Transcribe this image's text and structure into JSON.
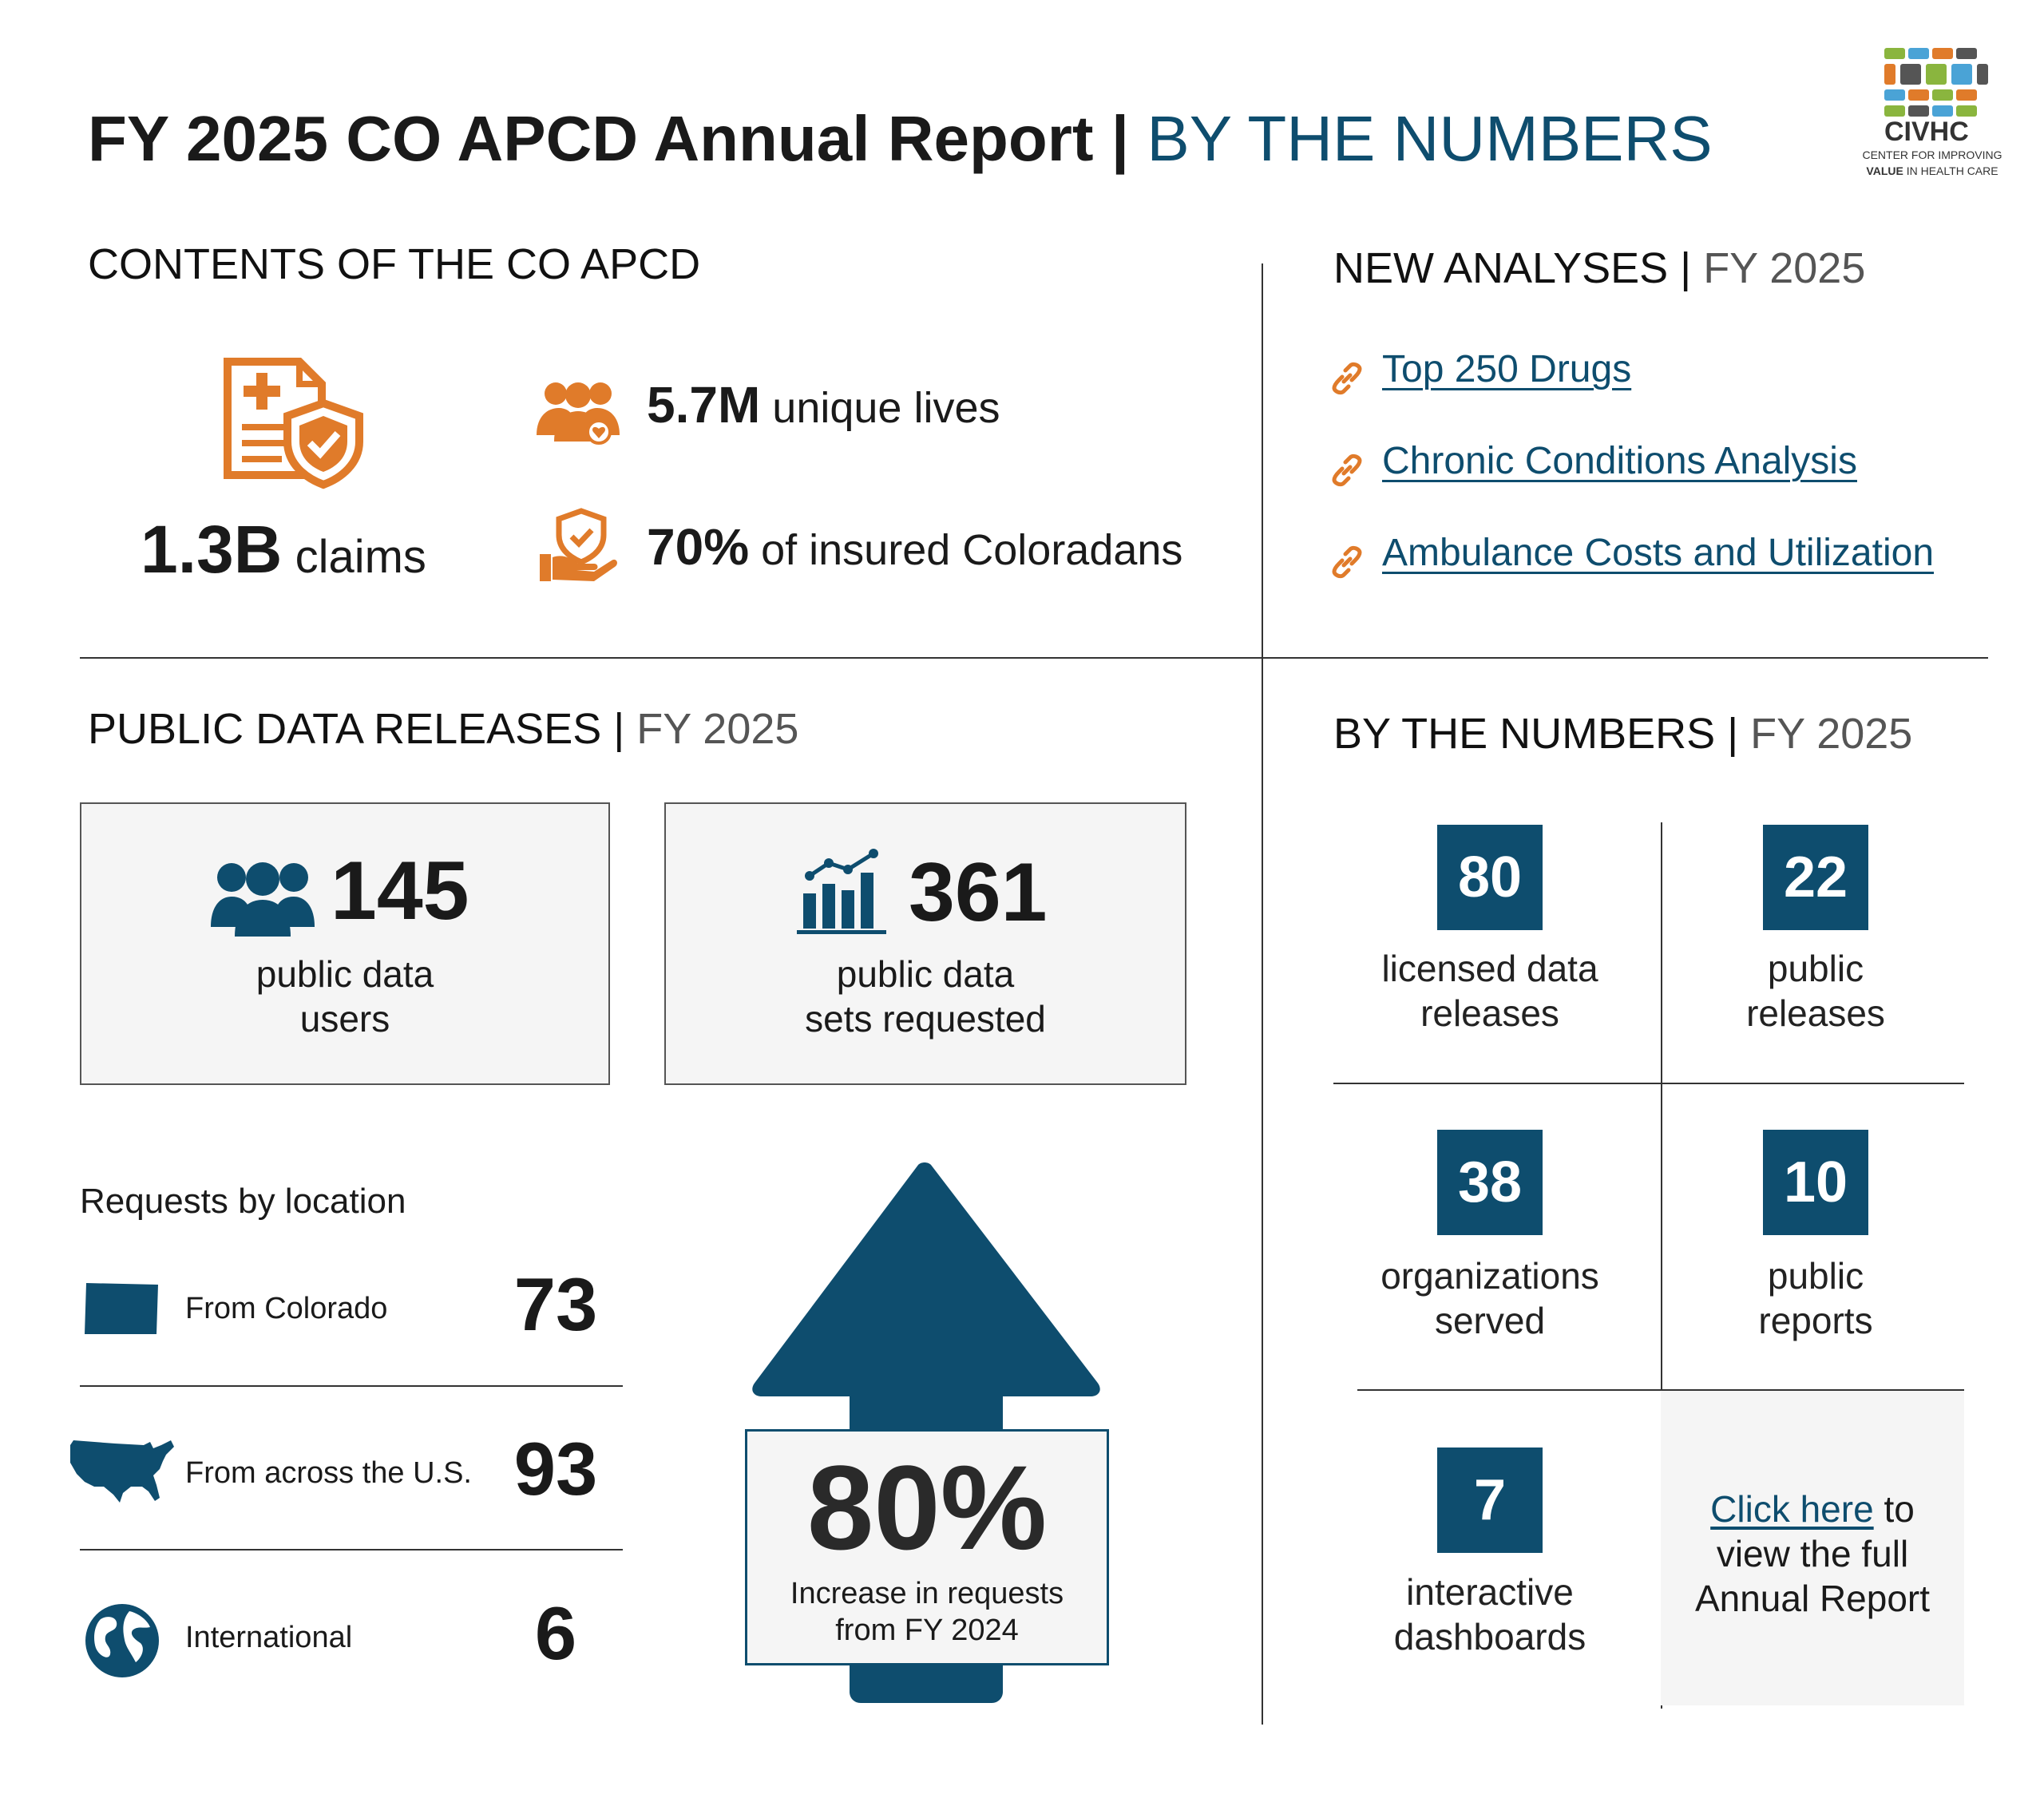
{
  "header": {
    "title_main": "FY 2025 CO APCD Annual Report |",
    "title_accent": "BY THE NUMBERS",
    "logo_name": "CIVHC",
    "logo_line1": "CENTER FOR IMPROVING",
    "logo_line2_bold": "VALUE",
    "logo_line2_rest": "IN HEALTH CARE"
  },
  "contents": {
    "heading": "CONTENTS OF THE CO APCD",
    "claims_num": "1.3B",
    "claims_label": "claims",
    "lives_num": "5.7M",
    "lives_label": "unique lives",
    "insured_num": "70%",
    "insured_label": "of insured Coloradans",
    "icons": [
      "claim-document-shield-icon",
      "people-group-icon",
      "hand-shield-icon"
    ],
    "accent_color": "#e07b2a"
  },
  "new_analyses": {
    "heading": "NEW ANALYSES",
    "heading_light": "FY 2025",
    "links": [
      "Top 250 Drugs",
      "Chronic Conditions Analysis",
      "Ambulance Costs and Utilization"
    ]
  },
  "public_data": {
    "heading": "PUBLIC DATA RELEASES",
    "heading_light": "FY 2025",
    "users_num": "145",
    "users_label_1": "public data",
    "users_label_2": "users",
    "sets_num": "361",
    "sets_label_1": "public data",
    "sets_label_2": "sets requested",
    "requests_heading": "Requests by location",
    "locations": [
      {
        "label": "From Colorado",
        "value": "73"
      },
      {
        "label": "From across the U.S.",
        "value": "93"
      },
      {
        "label": "International",
        "value": "6"
      }
    ],
    "increase_value": "80%",
    "increase_label_1": "Increase in requests",
    "increase_label_2": "from FY 2024"
  },
  "by_numbers": {
    "heading": "BY THE NUMBERS",
    "heading_light": "FY 2025",
    "tiles": [
      {
        "value": "80",
        "line1": "licensed data",
        "line2": "releases"
      },
      {
        "value": "22",
        "line1": "public",
        "line2": "releases"
      },
      {
        "value": "38",
        "line1": "organizations",
        "line2": "served"
      },
      {
        "value": "10",
        "line1": "public",
        "line2": "reports"
      },
      {
        "value": "7",
        "line1": "interactive",
        "line2": "dashboards"
      }
    ],
    "cta_link": "Click here",
    "cta_rest_1": "to",
    "cta_line2": "view the full",
    "cta_line3": "Annual Report"
  },
  "colors": {
    "primary": "#0e4d6e",
    "accent": "#e07b2a",
    "box_bg": "#f5f5f5"
  }
}
